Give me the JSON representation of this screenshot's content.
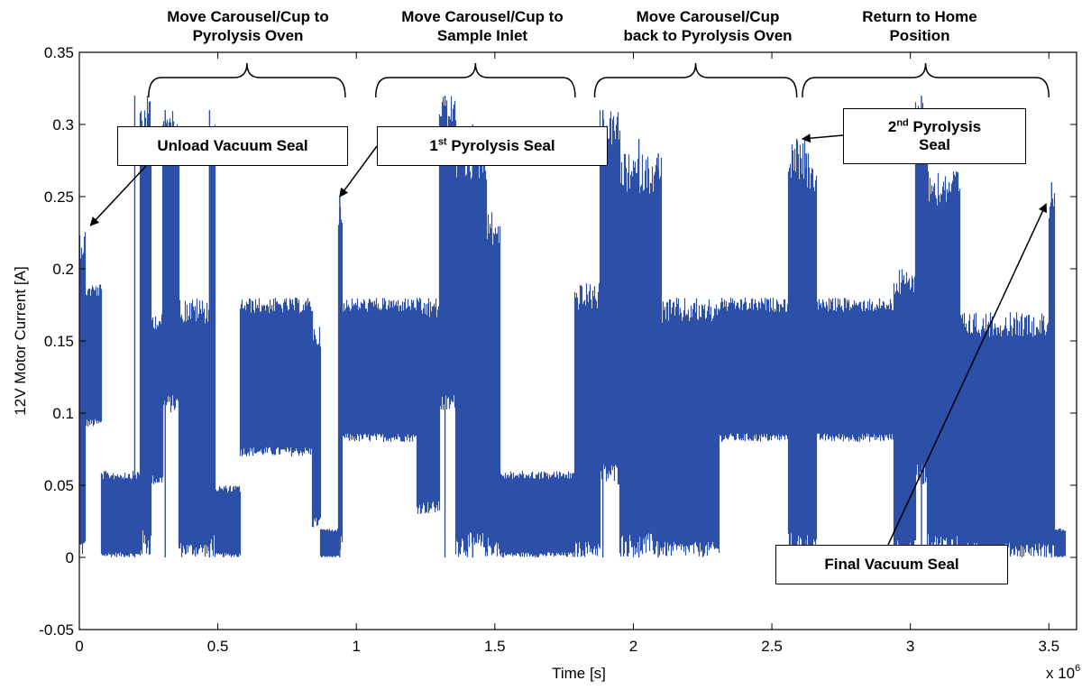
{
  "chart_data": {
    "type": "line",
    "xlabel": "Time [s]",
    "ylabel": "12V Motor Current [A]",
    "x_multiplier": "x 10",
    "x_multiplier_exp": "6",
    "xlim": [
      0,
      3600000
    ],
    "ylim": [
      -0.05,
      0.35
    ],
    "xticks": [
      0,
      500000,
      1000000,
      1500000,
      2000000,
      2500000,
      3000000,
      3500000
    ],
    "xtick_labels": [
      "0",
      "0.5",
      "1",
      "1.5",
      "2",
      "2.5",
      "3",
      "3.5"
    ],
    "yticks": [
      -0.05,
      0,
      0.05,
      0.1,
      0.15,
      0.2,
      0.25,
      0.3,
      0.35
    ],
    "ytick_labels": [
      "-0.05",
      "0",
      "0.05",
      "0.1",
      "0.15",
      "0.2",
      "0.25",
      "0.3",
      "0.35"
    ],
    "grid": false,
    "series_color": "#2C4FA8",
    "segments": [
      {
        "x0": 0,
        "x1": 20000,
        "low": 0.0,
        "high": 0.23
      },
      {
        "x0": 20000,
        "x1": 80000,
        "low": 0.09,
        "high": 0.19
      },
      {
        "x0": 80000,
        "x1": 220000,
        "low": 0.0,
        "high": 0.06
      },
      {
        "x0": 220000,
        "x1": 260000,
        "low": 0.0,
        "high": 0.32
      },
      {
        "x0": 260000,
        "x1": 300000,
        "low": 0.05,
        "high": 0.17
      },
      {
        "x0": 300000,
        "x1": 360000,
        "low": 0.1,
        "high": 0.31
      },
      {
        "x0": 360000,
        "x1": 470000,
        "low": 0.0,
        "high": 0.18
      },
      {
        "x0": 470000,
        "x1": 490000,
        "low": 0.0,
        "high": 0.3
      },
      {
        "x0": 490000,
        "x1": 580000,
        "low": 0.0,
        "high": 0.05
      },
      {
        "x0": 580000,
        "x1": 840000,
        "low": 0.07,
        "high": 0.18
      },
      {
        "x0": 840000,
        "x1": 870000,
        "low": 0.02,
        "high": 0.16
      },
      {
        "x0": 870000,
        "x1": 935000,
        "low": 0.0,
        "high": 0.02
      },
      {
        "x0": 935000,
        "x1": 950000,
        "low": 0.0,
        "high": 0.25
      },
      {
        "x0": 950000,
        "x1": 1220000,
        "low": 0.08,
        "high": 0.18
      },
      {
        "x0": 1220000,
        "x1": 1300000,
        "low": 0.03,
        "high": 0.18
      },
      {
        "x0": 1300000,
        "x1": 1360000,
        "low": 0.1,
        "high": 0.32
      },
      {
        "x0": 1360000,
        "x1": 1470000,
        "low": 0.0,
        "high": 0.29
      },
      {
        "x0": 1470000,
        "x1": 1520000,
        "low": 0.0,
        "high": 0.24
      },
      {
        "x0": 1520000,
        "x1": 1790000,
        "low": 0.0,
        "high": 0.06
      },
      {
        "x0": 1790000,
        "x1": 1880000,
        "low": 0.0,
        "high": 0.19
      },
      {
        "x0": 1880000,
        "x1": 1950000,
        "low": 0.05,
        "high": 0.31
      },
      {
        "x0": 1950000,
        "x1": 2100000,
        "low": 0.0,
        "high": 0.28
      },
      {
        "x0": 2100000,
        "x1": 2310000,
        "low": 0.0,
        "high": 0.18
      },
      {
        "x0": 2310000,
        "x1": 2560000,
        "low": 0.08,
        "high": 0.18
      },
      {
        "x0": 2560000,
        "x1": 2620000,
        "low": 0.0,
        "high": 0.29
      },
      {
        "x0": 2620000,
        "x1": 2660000,
        "low": 0.0,
        "high": 0.28
      },
      {
        "x0": 2660000,
        "x1": 2940000,
        "low": 0.08,
        "high": 0.18
      },
      {
        "x0": 2940000,
        "x1": 3020000,
        "low": 0.0,
        "high": 0.2
      },
      {
        "x0": 3020000,
        "x1": 3060000,
        "low": 0.05,
        "high": 0.32
      },
      {
        "x0": 3060000,
        "x1": 3180000,
        "low": 0.0,
        "high": 0.27
      },
      {
        "x0": 3180000,
        "x1": 3400000,
        "low": 0.0,
        "high": 0.17
      },
      {
        "x0": 3400000,
        "x1": 3500000,
        "low": 0.0,
        "high": 0.17
      },
      {
        "x0": 3500000,
        "x1": 3520000,
        "low": 0.0,
        "high": 0.26
      },
      {
        "x0": 3520000,
        "x1": 3560000,
        "low": 0.0,
        "high": 0.02
      }
    ],
    "spikes": [
      {
        "x": 200000,
        "y": 0.32
      },
      {
        "x": 310000,
        "y": 0.31
      },
      {
        "x": 470000,
        "y": 0.31
      },
      {
        "x": 940000,
        "y": 0.25
      },
      {
        "x": 1320000,
        "y": 0.32
      },
      {
        "x": 1420000,
        "y": 0.3
      },
      {
        "x": 1890000,
        "y": 0.31
      },
      {
        "x": 2020000,
        "y": 0.29
      },
      {
        "x": 2090000,
        "y": 0.28
      },
      {
        "x": 2590000,
        "y": 0.29
      },
      {
        "x": 2620000,
        "y": 0.28
      },
      {
        "x": 3040000,
        "y": 0.32
      },
      {
        "x": 3140000,
        "y": 0.26
      },
      {
        "x": 3510000,
        "y": 0.26
      }
    ],
    "phases": [
      {
        "label_line1": "Move Carousel/Cup to",
        "label_line2": "Pyrolysis Oven",
        "x_start": 250000,
        "x_end": 960000
      },
      {
        "label_line1": "Move Carousel/Cup to",
        "label_line2": "Sample Inlet",
        "x_start": 1070000,
        "x_end": 1790000
      },
      {
        "label_line1": "Move Carousel/Cup",
        "label_line2": "back to Pyrolysis Oven",
        "x_start": 1860000,
        "x_end": 2590000
      },
      {
        "label_line1": "Return to Home",
        "label_line2": "Position",
        "x_start": 2610000,
        "x_end": 3500000
      }
    ],
    "annotations": [
      {
        "text": "Unload Vacuum Seal",
        "target_x": 40000,
        "target_y": 0.23
      },
      {
        "text": "Pyrolysis Seal",
        "ordinal": "1",
        "ordinal_suffix": "st",
        "target_x": 940000,
        "target_y": 0.25
      },
      {
        "text_line1": "Pyrolysis",
        "text_line2": "Seal",
        "ordinal": "2",
        "ordinal_suffix": "nd",
        "target_x": 2610000,
        "target_y": 0.29
      },
      {
        "text": "Final Vacuum Seal",
        "target_x": 3490000,
        "target_y": 0.245
      }
    ]
  }
}
